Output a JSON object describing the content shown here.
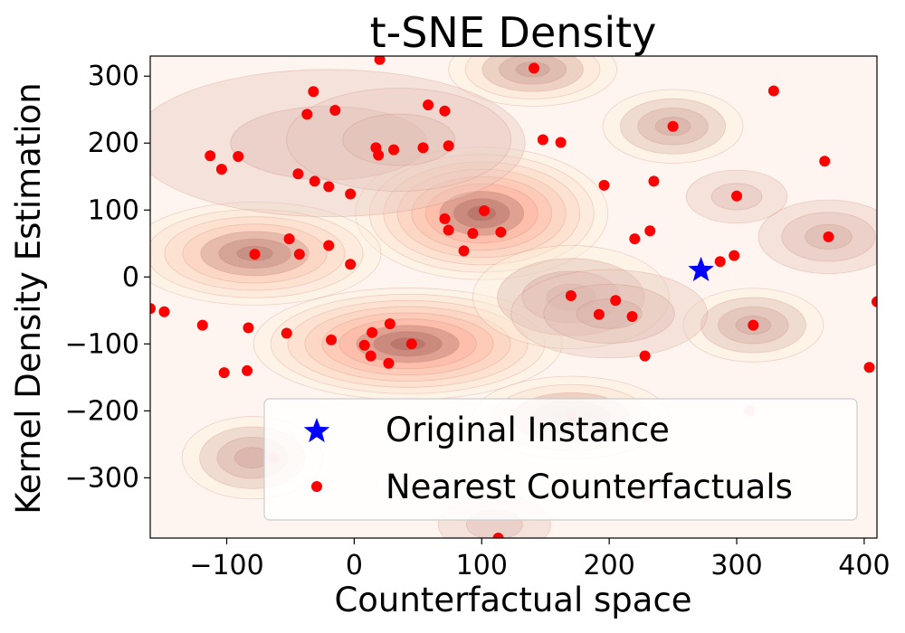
{
  "chart_data": {
    "type": "scatter",
    "title": "t-SNE Density",
    "xlabel": "Counterfactual space",
    "ylabel": "Kernel Density Estimation",
    "xlim": [
      -160,
      410
    ],
    "ylim": [
      -390,
      330
    ],
    "xticks": [
      -100,
      0,
      100,
      200,
      300,
      400
    ],
    "yticks": [
      -300,
      -200,
      -100,
      0,
      100,
      200,
      300
    ],
    "xtick_labels": [
      "−100",
      "0",
      "100",
      "200",
      "300",
      "400"
    ],
    "ytick_labels": [
      "−300",
      "−200",
      "−100",
      "0",
      "100",
      "200",
      "300"
    ],
    "legend": {
      "position": "lower-right",
      "entries": [
        "Original Instance",
        "Nearest Counterfactuals"
      ]
    },
    "colors": {
      "original": "#0000ff",
      "counterfactual": "#ff0000"
    },
    "density_peaks": [
      {
        "x": 42,
        "y": -100,
        "sx": 55,
        "sy": 38,
        "w": 1.0
      },
      {
        "x": 100,
        "y": 95,
        "sx": 45,
        "sy": 45,
        "w": 0.95
      },
      {
        "x": -78,
        "y": 35,
        "sx": 45,
        "sy": 35,
        "w": 0.75
      },
      {
        "x": 140,
        "y": 310,
        "sx": 30,
        "sy": 25,
        "w": 0.55
      },
      {
        "x": 170,
        "y": -210,
        "sx": 35,
        "sy": 28,
        "w": 0.6
      },
      {
        "x": 170,
        "y": -30,
        "sx": 35,
        "sy": 35,
        "w": 0.45
      },
      {
        "x": -80,
        "y": -270,
        "sx": 25,
        "sy": 28,
        "w": 0.45
      },
      {
        "x": 250,
        "y": 225,
        "sx": 25,
        "sy": 25,
        "w": 0.45
      },
      {
        "x": 313,
        "y": -72,
        "sx": 25,
        "sy": 25,
        "w": 0.42
      },
      {
        "x": 372,
        "y": 60,
        "sx": 25,
        "sy": 25,
        "w": 0.3
      },
      {
        "x": 300,
        "y": 120,
        "sx": 18,
        "sy": 18,
        "w": 0.25
      },
      {
        "x": -20,
        "y": 200,
        "sx": 70,
        "sy": 50,
        "w": 0.22
      },
      {
        "x": 35,
        "y": 205,
        "sx": 40,
        "sy": 35,
        "w": 0.2
      },
      {
        "x": 200,
        "y": -55,
        "sx": 35,
        "sy": 30,
        "w": 0.3
      },
      {
        "x": 110,
        "y": -370,
        "sx": 20,
        "sy": 20,
        "w": 0.25
      }
    ],
    "original_instance": [
      {
        "x": 272,
        "y": 10
      }
    ],
    "counterfactuals": [
      {
        "x": 141,
        "y": 312
      },
      {
        "x": 20,
        "y": 325
      },
      {
        "x": -32,
        "y": 277
      },
      {
        "x": -37,
        "y": 243
      },
      {
        "x": -15,
        "y": 249
      },
      {
        "x": 58,
        "y": 257
      },
      {
        "x": 71,
        "y": 248
      },
      {
        "x": 250,
        "y": 225
      },
      {
        "x": 329,
        "y": 278
      },
      {
        "x": 148,
        "y": 205
      },
      {
        "x": 162,
        "y": 201
      },
      {
        "x": 369,
        "y": 173
      },
      {
        "x": -113,
        "y": 181
      },
      {
        "x": -91,
        "y": 180
      },
      {
        "x": -104,
        "y": 161
      },
      {
        "x": 17,
        "y": 193
      },
      {
        "x": 31,
        "y": 190
      },
      {
        "x": 54,
        "y": 193
      },
      {
        "x": 74,
        "y": 196
      },
      {
        "x": 19,
        "y": 182
      },
      {
        "x": -44,
        "y": 154
      },
      {
        "x": -31,
        "y": 143
      },
      {
        "x": -20,
        "y": 135
      },
      {
        "x": -3,
        "y": 124
      },
      {
        "x": 196,
        "y": 137
      },
      {
        "x": 235,
        "y": 143
      },
      {
        "x": 300,
        "y": 121
      },
      {
        "x": 102,
        "y": 99
      },
      {
        "x": 71,
        "y": 87
      },
      {
        "x": 74,
        "y": 70
      },
      {
        "x": 93,
        "y": 65
      },
      {
        "x": 115,
        "y": 67
      },
      {
        "x": 86,
        "y": 39
      },
      {
        "x": 232,
        "y": 69
      },
      {
        "x": 220,
        "y": 57
      },
      {
        "x": 372,
        "y": 60
      },
      {
        "x": -51,
        "y": 57
      },
      {
        "x": -20,
        "y": 47
      },
      {
        "x": -78,
        "y": 34
      },
      {
        "x": -43,
        "y": 34
      },
      {
        "x": -3,
        "y": 19
      },
      {
        "x": 298,
        "y": 32
      },
      {
        "x": 287,
        "y": 23
      },
      {
        "x": -160,
        "y": -47
      },
      {
        "x": -149,
        "y": -52
      },
      {
        "x": 170,
        "y": -28
      },
      {
        "x": 205,
        "y": -35
      },
      {
        "x": 410,
        "y": -37
      },
      {
        "x": 192,
        "y": -56
      },
      {
        "x": 218,
        "y": -59
      },
      {
        "x": 313,
        "y": -72
      },
      {
        "x": -119,
        "y": -72
      },
      {
        "x": -83,
        "y": -76
      },
      {
        "x": 28,
        "y": -70
      },
      {
        "x": 14,
        "y": -83
      },
      {
        "x": -53,
        "y": -84
      },
      {
        "x": -18,
        "y": -94
      },
      {
        "x": 8,
        "y": -102
      },
      {
        "x": 45,
        "y": -100
      },
      {
        "x": 13,
        "y": -118
      },
      {
        "x": 27,
        "y": -129
      },
      {
        "x": 228,
        "y": -118
      },
      {
        "x": -84,
        "y": -140
      },
      {
        "x": -102,
        "y": -143
      },
      {
        "x": 404,
        "y": -135
      },
      {
        "x": 113,
        "y": -390
      }
    ],
    "faded_points": [
      {
        "x": -63,
        "y": -270
      },
      {
        "x": 310,
        "y": -200
      },
      {
        "x": 228,
        "y": -328
      },
      {
        "x": 170,
        "y": -210
      }
    ]
  }
}
